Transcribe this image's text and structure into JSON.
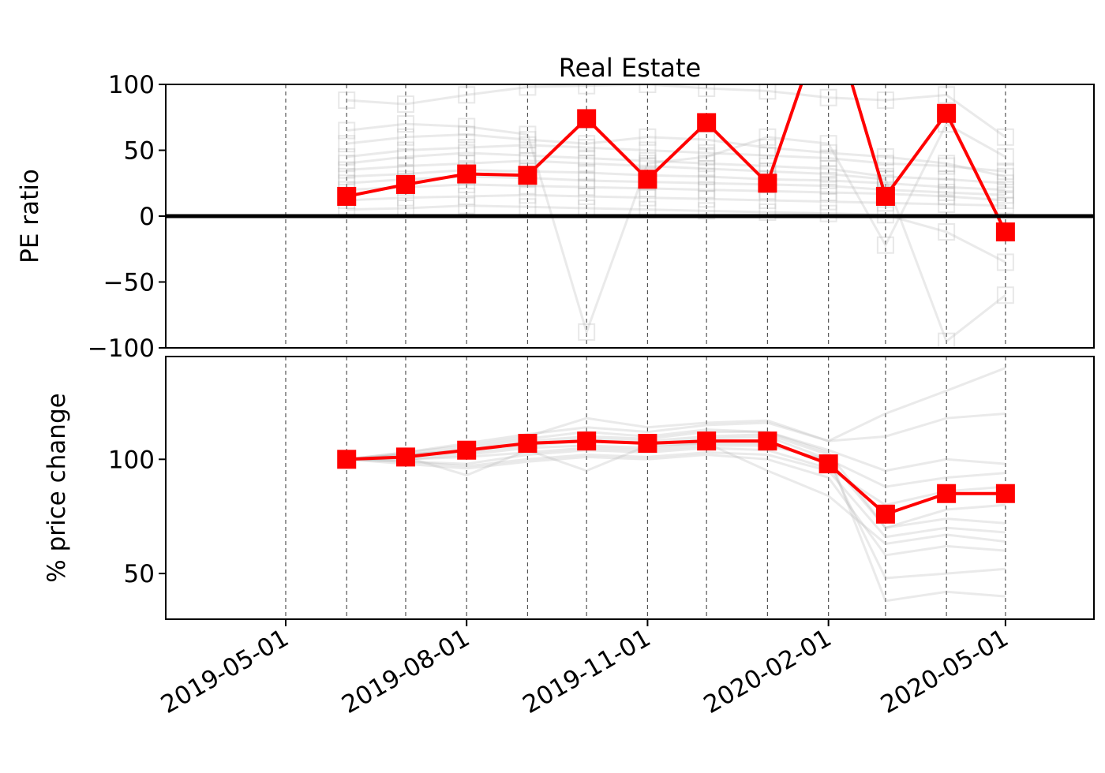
{
  "chart_data": [
    {
      "type": "line",
      "title": "Real Estate",
      "ylabel": "PE ratio",
      "ylim": [
        -100,
        100
      ],
      "yticks": [
        100,
        50,
        0,
        -50,
        -100
      ],
      "ytick_labels": [
        "100",
        "50",
        "0",
        "−50",
        "−100"
      ],
      "zero_line": true,
      "series": [
        {
          "color": "#ff0000",
          "marker": "square",
          "x": [
            "2019-06-01",
            "2019-07-01",
            "2019-08-01",
            "2019-09-01",
            "2019-10-01",
            "2019-11-01",
            "2019-12-01",
            "2020-01-01",
            "2020-02-01",
            "2020-03-01",
            "2020-04-01",
            "2020-05-01"
          ],
          "values": [
            15,
            24,
            32,
            31,
            74,
            28,
            71,
            25,
            160,
            15,
            78,
            -12
          ]
        }
      ],
      "background_series_color": "#b4b4b4",
      "background_series": [
        [
          88,
          85,
          92,
          98,
          99,
          100,
          97,
          95,
          90,
          88,
          92,
          60
        ],
        [
          55,
          60,
          62,
          58,
          55,
          60,
          58,
          52,
          48,
          45,
          40,
          30
        ],
        [
          40,
          45,
          48,
          46,
          44,
          42,
          40,
          38,
          36,
          30,
          28,
          25
        ],
        [
          30,
          32,
          35,
          34,
          33,
          31,
          30,
          28,
          27,
          25,
          22,
          20
        ],
        [
          25,
          28,
          30,
          29,
          27,
          26,
          25,
          24,
          23,
          20,
          18,
          16
        ],
        [
          20,
          22,
          24,
          23,
          22,
          21,
          20,
          19,
          18,
          17,
          15,
          12
        ],
        [
          12,
          14,
          15,
          16,
          15,
          14,
          13,
          12,
          11,
          10,
          9,
          8
        ],
        [
          5,
          6,
          8,
          7,
          6,
          5,
          4,
          3,
          2,
          1,
          -12,
          -35
        ],
        [
          65,
          70,
          68,
          62,
          -88,
          40,
          45,
          60,
          55,
          -22,
          70,
          45
        ],
        [
          35,
          38,
          40,
          42,
          40,
          38,
          36,
          34,
          32,
          28,
          -95,
          -60
        ],
        [
          45,
          50,
          52,
          54,
          52,
          50,
          48,
          46,
          44,
          40,
          38,
          34
        ]
      ],
      "grid_x": true
    },
    {
      "type": "line",
      "ylabel": "% price change",
      "ylim": [
        30,
        145
      ],
      "yticks": [
        100,
        50
      ],
      "ytick_labels": [
        "100",
        "50"
      ],
      "xlim": [
        "2019-03-01",
        "2020-06-15"
      ],
      "xticks": [
        "2019-05-01",
        "2019-08-01",
        "2019-11-01",
        "2020-02-01",
        "2020-05-01"
      ],
      "xtick_labels": [
        "2019-05-01",
        "2019-08-01",
        "2019-11-01",
        "2020-02-01",
        "2020-05-01"
      ],
      "series": [
        {
          "color": "#ff0000",
          "marker": "square",
          "x": [
            "2019-06-01",
            "2019-07-01",
            "2019-08-01",
            "2019-09-01",
            "2019-10-01",
            "2019-11-01",
            "2019-12-01",
            "2020-01-01",
            "2020-02-01",
            "2020-03-01",
            "2020-04-01",
            "2020-05-01"
          ],
          "values": [
            100,
            101,
            104,
            107,
            108,
            107,
            108,
            108,
            98,
            76,
            85,
            85
          ]
        }
      ],
      "background_series_color": "#b4b4b4",
      "background_series": [
        [
          100,
          101,
          93,
          104,
          95,
          106,
          107,
          95,
          84,
          63,
          67,
          64
        ],
        [
          100,
          102,
          104,
          108,
          110,
          109,
          112,
          112,
          104,
          95,
          100,
          98
        ],
        [
          100,
          103,
          106,
          110,
          118,
          114,
          116,
          117,
          108,
          120,
          130,
          140
        ],
        [
          100,
          99,
          98,
          102,
          104,
          103,
          105,
          104,
          96,
          80,
          86,
          88
        ],
        [
          100,
          100,
          101,
          103,
          105,
          104,
          106,
          106,
          100,
          88,
          92,
          94
        ],
        [
          100,
          102,
          105,
          109,
          112,
          110,
          113,
          112,
          103,
          70,
          78,
          80
        ],
        [
          100,
          98,
          96,
          99,
          101,
          100,
          102,
          100,
          92,
          58,
          62,
          60
        ],
        [
          100,
          101,
          103,
          106,
          108,
          107,
          109,
          110,
          100,
          70,
          74,
          72
        ],
        [
          100,
          99,
          97,
          100,
          102,
          101,
          103,
          102,
          95,
          66,
          70,
          68
        ],
        [
          100,
          103,
          107,
          111,
          114,
          112,
          115,
          116,
          108,
          110,
          118,
          120
        ],
        [
          100,
          100,
          102,
          105,
          106,
          105,
          107,
          107,
          99,
          48,
          50,
          52
        ],
        [
          100,
          102,
          104,
          107,
          109,
          108,
          110,
          111,
          102,
          38,
          42,
          40
        ]
      ],
      "grid_x": true
    }
  ]
}
